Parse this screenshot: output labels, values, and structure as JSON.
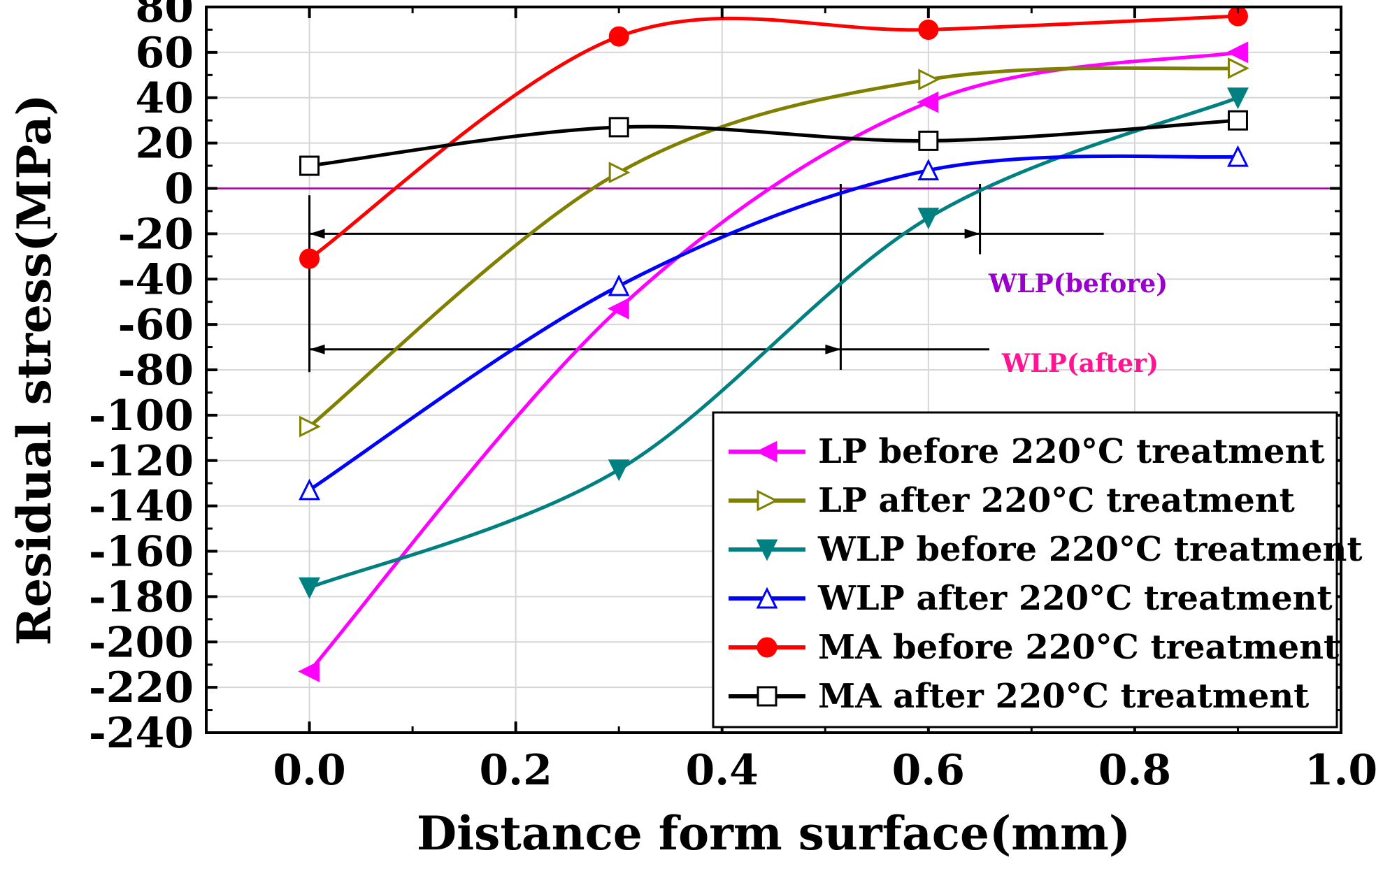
{
  "chart_data": {
    "type": "line",
    "xlabel": "Distance form surface(mm)",
    "ylabel": "Residual stress(MPa)",
    "xlim": [
      -0.1,
      1.0
    ],
    "ylim": [
      -240,
      80
    ],
    "xticks": [
      "0.0",
      "0.2",
      "0.4",
      "0.6",
      "0.8",
      "1.0"
    ],
    "yticks": [
      "80",
      "60",
      "40",
      "20",
      "0",
      "-20",
      "-40",
      "-60",
      "-80",
      "-100",
      "-120",
      "-140",
      "-160",
      "-180",
      "-200",
      "-220",
      "-240"
    ],
    "grid": true,
    "zero_line": true,
    "legend_position": "bottom-right",
    "series": [
      {
        "name": "LP before 220°C treatment",
        "color": "#ff00ff",
        "marker": "triangle-left-filled",
        "x": [
          0.0,
          0.3,
          0.6,
          0.9
        ],
        "y": [
          -213,
          -53,
          38,
          60
        ]
      },
      {
        "name": "LP after 220°C treatment",
        "color": "#808000",
        "marker": "triangle-right-open",
        "x": [
          0.0,
          0.3,
          0.6,
          0.9
        ],
        "y": [
          -105,
          7,
          48,
          53
        ]
      },
      {
        "name": "WLP before 220°C treatment",
        "color": "#008080",
        "marker": "triangle-down-filled",
        "x": [
          0.0,
          0.3,
          0.6,
          0.9
        ],
        "y": [
          -176,
          -124,
          -13,
          40
        ]
      },
      {
        "name": "WLP after 220°C treatment",
        "color": "#0000ff",
        "marker": "triangle-up-open",
        "x": [
          0.0,
          0.3,
          0.6,
          0.9
        ],
        "y": [
          -133,
          -43,
          8,
          14
        ]
      },
      {
        "name": "MA before 220°C treatment",
        "color": "#ff0000",
        "marker": "circle-filled",
        "x": [
          0.0,
          0.3,
          0.6,
          0.9
        ],
        "y": [
          -31,
          67,
          70,
          76
        ]
      },
      {
        "name": "MA after 220°C treatment",
        "color": "#000000",
        "marker": "square-open",
        "x": [
          0.0,
          0.3,
          0.6,
          0.9
        ],
        "y": [
          10,
          27,
          21,
          30
        ]
      }
    ],
    "annotations": [
      {
        "text": "WLP(before)",
        "color": "#9900cc",
        "x_from": 0.0,
        "x_to": 0.65,
        "y": -20
      },
      {
        "text": "WLP(after)",
        "color": "#ff1493",
        "x_from": 0.0,
        "x_to": 0.515,
        "y": -71
      }
    ]
  }
}
